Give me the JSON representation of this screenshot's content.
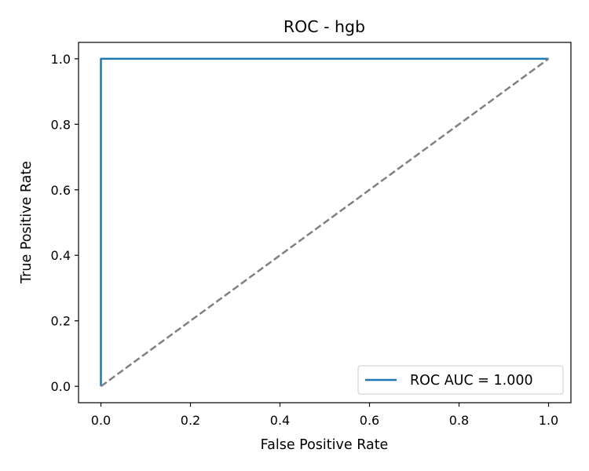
{
  "chart_data": {
    "type": "line",
    "title": "ROC - hgb",
    "xlabel": "False Positive Rate",
    "ylabel": "True Positive Rate",
    "xlim": [
      -0.05,
      1.05
    ],
    "ylim": [
      -0.05,
      1.05
    ],
    "xticks": [
      0.0,
      0.2,
      0.4,
      0.6,
      0.8,
      1.0
    ],
    "yticks": [
      0.0,
      0.2,
      0.4,
      0.6,
      0.8,
      1.0
    ],
    "xtick_labels": [
      "0.0",
      "0.2",
      "0.4",
      "0.6",
      "0.8",
      "1.0"
    ],
    "ytick_labels": [
      "0.0",
      "0.2",
      "0.4",
      "0.6",
      "0.8",
      "1.0"
    ],
    "grid": false,
    "legend_position": "lower-right",
    "series": [
      {
        "name": "ROC AUC = 1.000",
        "style": "solid",
        "color": "#1f77b4",
        "x": [
          0.0,
          0.0,
          1.0
        ],
        "y": [
          0.0,
          1.0,
          1.0
        ]
      },
      {
        "style": "dashed",
        "color": "#808080",
        "x": [
          0.0,
          1.0
        ],
        "y": [
          0.0,
          1.0
        ]
      }
    ]
  }
}
